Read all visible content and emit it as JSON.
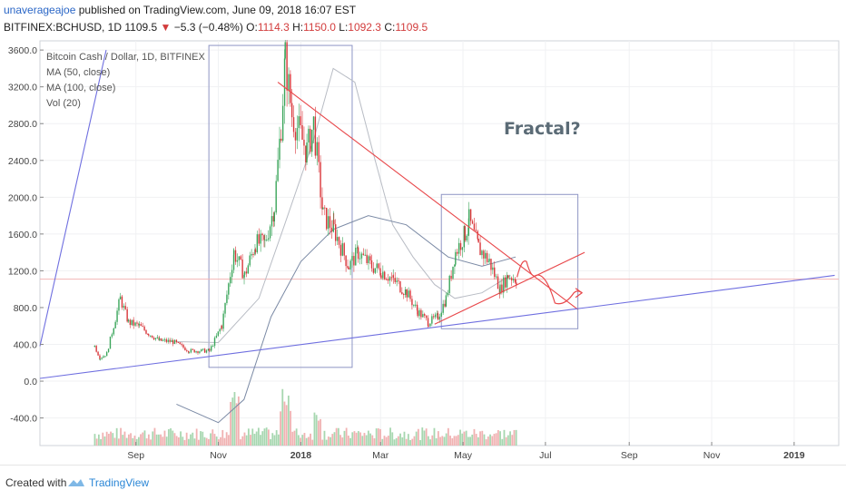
{
  "header": {
    "user": "unaverageajoe",
    "published": " published on TradingView.com, June 09, 2018 16:07 EST",
    "symbol": "BITFINEX:BCHUSD, 1D",
    "last": "1109.5",
    "change_arrow": "▼",
    "change": "−5.3 (−0.48%)",
    "o_label": "O:",
    "o": "1114.3",
    "h_label": "H:",
    "h": "1150.0",
    "l_label": "L:",
    "l": "1092.3",
    "c_label": "C:",
    "c": "1109.5"
  },
  "footer": {
    "created_with": "Created with",
    "brand": "TradingView"
  },
  "colors": {
    "up": "#3aa55a",
    "down": "#d9363a",
    "trend": "#e8474a",
    "blue_line": "#6f6fe0",
    "box": "#8e95c4",
    "ma": "#b8bcc4",
    "ma100": "#7b8aa5",
    "hline": "#f2b4b4",
    "volume_up": "#a7d7b0",
    "volume_down": "#f0b2b2"
  },
  "chart_data": {
    "type": "candlestick",
    "title": "Bitcoin Cash / Dollar, 1D, BITFINEX",
    "legend": [
      "Bitcoin Cash / Dollar, 1D, BITFINEX",
      "MA (50, close)",
      "MA (100, close)",
      "Vol (20)"
    ],
    "annotation": "Fractal?",
    "yticks": [
      "3600.0",
      "3200.0",
      "2800.0",
      "2400.0",
      "2000.0",
      "1600.0",
      "1200.0",
      "800.0",
      "400.0",
      "0.0",
      "-400.0"
    ],
    "xticks": [
      "Sep",
      "Nov",
      "2018",
      "Mar",
      "May",
      "Jul",
      "Sep",
      "Nov",
      "2019"
    ],
    "ylim": [
      -700,
      3700
    ],
    "last_price": 1109.5,
    "close_series": [
      {
        "date": "2017-08-01",
        "value": 380
      },
      {
        "date": "2017-08-05",
        "value": 250
      },
      {
        "date": "2017-08-10",
        "value": 300
      },
      {
        "date": "2017-08-20",
        "value": 900
      },
      {
        "date": "2017-08-26",
        "value": 640
      },
      {
        "date": "2017-09-03",
        "value": 600
      },
      {
        "date": "2017-09-10",
        "value": 520
      },
      {
        "date": "2017-09-18",
        "value": 440
      },
      {
        "date": "2017-09-28",
        "value": 430
      },
      {
        "date": "2017-10-10",
        "value": 330
      },
      {
        "date": "2017-10-25",
        "value": 330
      },
      {
        "date": "2017-11-03",
        "value": 600
      },
      {
        "date": "2017-11-12",
        "value": 1400
      },
      {
        "date": "2017-11-20",
        "value": 1150
      },
      {
        "date": "2017-11-28",
        "value": 1500
      },
      {
        "date": "2017-12-05",
        "value": 1500
      },
      {
        "date": "2017-12-12",
        "value": 1900
      },
      {
        "date": "2017-12-17",
        "value": 2800
      },
      {
        "date": "2017-12-20",
        "value": 3500
      },
      {
        "date": "2017-12-25",
        "value": 2900
      },
      {
        "date": "2018-01-05",
        "value": 2500
      },
      {
        "date": "2018-01-10",
        "value": 2800
      },
      {
        "date": "2018-01-17",
        "value": 1800
      },
      {
        "date": "2018-01-25",
        "value": 1650
      },
      {
        "date": "2018-02-05",
        "value": 1250
      },
      {
        "date": "2018-02-12",
        "value": 1400
      },
      {
        "date": "2018-02-22",
        "value": 1250
      },
      {
        "date": "2018-03-01",
        "value": 1200
      },
      {
        "date": "2018-03-10",
        "value": 1100
      },
      {
        "date": "2018-03-20",
        "value": 960
      },
      {
        "date": "2018-03-28",
        "value": 760
      },
      {
        "date": "2018-04-05",
        "value": 640
      },
      {
        "date": "2018-04-12",
        "value": 700
      },
      {
        "date": "2018-04-18",
        "value": 900
      },
      {
        "date": "2018-04-25",
        "value": 1400
      },
      {
        "date": "2018-05-02",
        "value": 1600
      },
      {
        "date": "2018-05-05",
        "value": 1750
      },
      {
        "date": "2018-05-12",
        "value": 1450
      },
      {
        "date": "2018-05-20",
        "value": 1300
      },
      {
        "date": "2018-05-28",
        "value": 1000
      },
      {
        "date": "2018-06-03",
        "value": 1150
      },
      {
        "date": "2018-06-09",
        "value": 1109.5
      }
    ],
    "ma50": [
      {
        "date": "2017-10-01",
        "value": 430
      },
      {
        "date": "2017-11-01",
        "value": 420
      },
      {
        "date": "2017-12-01",
        "value": 900
      },
      {
        "date": "2017-12-20",
        "value": 1700
      },
      {
        "date": "2018-01-10",
        "value": 2600
      },
      {
        "date": "2018-01-25",
        "value": 3400
      },
      {
        "date": "2018-02-10",
        "value": 3250
      },
      {
        "date": "2018-02-25",
        "value": 2400
      },
      {
        "date": "2018-03-10",
        "value": 1700
      },
      {
        "date": "2018-03-25",
        "value": 1350
      },
      {
        "date": "2018-04-10",
        "value": 1050
      },
      {
        "date": "2018-04-25",
        "value": 900
      },
      {
        "date": "2018-05-15",
        "value": 960
      },
      {
        "date": "2018-06-05",
        "value": 1150
      }
    ],
    "ma100": [
      {
        "date": "2017-10-01",
        "value": -250
      },
      {
        "date": "2017-11-01",
        "value": -450
      },
      {
        "date": "2017-11-20",
        "value": -200
      },
      {
        "date": "2017-12-10",
        "value": 700
      },
      {
        "date": "2018-01-01",
        "value": 1300
      },
      {
        "date": "2018-01-25",
        "value": 1650
      },
      {
        "date": "2018-02-20",
        "value": 1800
      },
      {
        "date": "2018-03-20",
        "value": 1700
      },
      {
        "date": "2018-04-20",
        "value": 1350
      },
      {
        "date": "2018-05-15",
        "value": 1250
      },
      {
        "date": "2018-06-09",
        "value": 1350
      }
    ],
    "trendlines": [
      {
        "from": {
          "date": "2017-12-15",
          "value": 3250
        },
        "to": {
          "date": "2018-07-25",
          "value": 780
        }
      },
      {
        "from": {
          "date": "2018-04-10",
          "value": 620
        },
        "to": {
          "date": "2018-07-30",
          "value": 1400
        }
      },
      {
        "from": {
          "date": "2017-06-22",
          "value": 30
        },
        "to": {
          "date": "2019-01-31",
          "value": 1150
        }
      },
      {
        "from": {
          "date": "2017-06-22",
          "value": 380
        },
        "to": {
          "date": "2017-08-10",
          "value": 3600
        }
      }
    ],
    "boxes": [
      {
        "from_date": "2017-10-25",
        "to_date": "2018-02-08",
        "top": 3650,
        "bottom": 150
      },
      {
        "from_date": "2018-04-15",
        "to_date": "2018-07-25",
        "top": 2030,
        "bottom": 570
      }
    ],
    "projection": [
      {
        "date": "2018-06-10",
        "value": 1130
      },
      {
        "date": "2018-06-17",
        "value": 1300
      },
      {
        "date": "2018-06-24",
        "value": 1150
      },
      {
        "date": "2018-07-08",
        "value": 850
      },
      {
        "date": "2018-07-22",
        "value": 960
      },
      {
        "date": "2018-07-28",
        "value": 960
      }
    ]
  }
}
